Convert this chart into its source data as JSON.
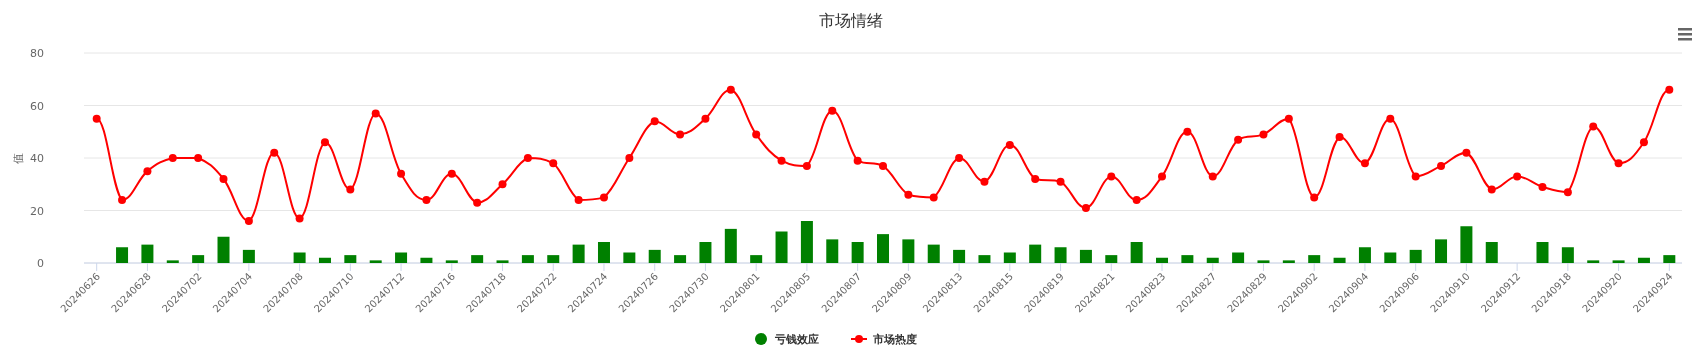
{
  "chart_data": {
    "type": "bar",
    "title": "市场情绪",
    "ylabel": "值",
    "categories": [
      "20240626",
      null,
      "20240628",
      null,
      "20240702",
      null,
      "20240704",
      null,
      "20240708",
      null,
      "20240710",
      null,
      "20240712",
      null,
      "20240716",
      null,
      "20240718",
      null,
      "20240722",
      null,
      "20240724",
      null,
      "20240726",
      null,
      "20240730",
      null,
      "20240801",
      null,
      "20240805",
      null,
      "20240807",
      null,
      "20240809",
      null,
      "20240813",
      null,
      "20240815",
      null,
      "20240819",
      null,
      "20240821",
      null,
      "20240823",
      null,
      "20240827",
      null,
      "20240829",
      null,
      "20240902",
      null,
      "20240904",
      null,
      "20240906",
      null,
      "20240910",
      null,
      "20240912",
      null,
      "20240918",
      null,
      "20240920",
      null,
      "20240924"
    ],
    "series": [
      {
        "name": "亏钱效应",
        "color": "#008000",
        "values": [
          0,
          6,
          7,
          1,
          3,
          10,
          5,
          0,
          4,
          2,
          3,
          1,
          4,
          2,
          1,
          3,
          1,
          3,
          3,
          7,
          8,
          4,
          5,
          3,
          8,
          13,
          3,
          12,
          16,
          9,
          8,
          11,
          9,
          7,
          5,
          3,
          4,
          7,
          6,
          5,
          3,
          8,
          2,
          3,
          2,
          4,
          1,
          1,
          3,
          2,
          6,
          4,
          5,
          9,
          14,
          8,
          0,
          8,
          6,
          1,
          1,
          2,
          3
        ]
      },
      {
        "name": "市场热度",
        "type": "line",
        "color": "#ff0000",
        "values": [
          55,
          24,
          35,
          40,
          40,
          32,
          16,
          42,
          17,
          46,
          28,
          57,
          34,
          24,
          34,
          23,
          30,
          40,
          38,
          24,
          25,
          40,
          54,
          49,
          55,
          66,
          49,
          39,
          37,
          58,
          39,
          37,
          26,
          25,
          40,
          31,
          45,
          32,
          31,
          21,
          33,
          24,
          33,
          50,
          33,
          47,
          49,
          55,
          25,
          48,
          38,
          55,
          33,
          37,
          42,
          28,
          33,
          29,
          27,
          52,
          38,
          46,
          66
        ]
      }
    ],
    "ylim": [
      0,
      80
    ],
    "yticks": [
      0,
      20,
      40,
      60,
      80
    ],
    "grid": "y",
    "legend": "bottom",
    "marker": "circle"
  }
}
